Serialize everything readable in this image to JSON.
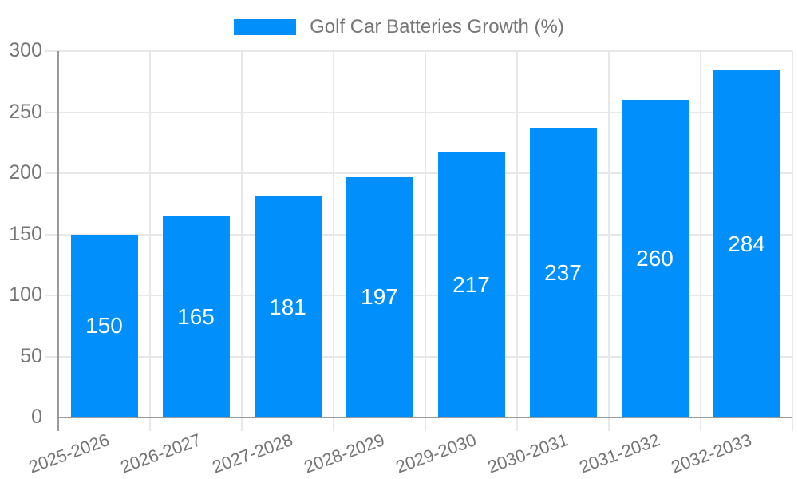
{
  "colors": {
    "bar": "#008FFB",
    "grid": "#e8e8e8",
    "axis": "#9a9a9a",
    "text": "#757575",
    "bar-label": "#ffffff",
    "bg": "#ffffff"
  },
  "chart_data": {
    "type": "bar",
    "legend_label": "Golf Car Batteries Growth (%)",
    "categories": [
      "2025-2026",
      "2026-2027",
      "2027-2028",
      "2028-2029",
      "2029-2030",
      "2030-2031",
      "2031-2032",
      "2032-2033"
    ],
    "values": [
      150,
      165,
      181,
      197,
      217,
      237,
      260,
      284
    ],
    "title": "",
    "xlabel": "",
    "ylabel": "",
    "ylim": [
      0,
      300
    ],
    "yticks": [
      0,
      50,
      100,
      150,
      200,
      250,
      300
    ],
    "grid": true,
    "legend_position": "top",
    "value_labels": "inside-center",
    "xtick_rotation_deg": -20
  }
}
